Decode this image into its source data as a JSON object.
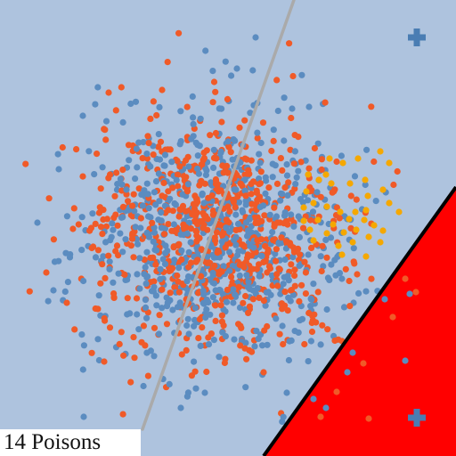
{
  "caption": "14 Poisons",
  "colors": {
    "background": "#aec3de",
    "region_fill": "#ff0000",
    "region_edge": "#000000",
    "boundary_line": "#aaaaaa",
    "class_a": "#f05a28",
    "class_b": "#5b8cc0",
    "poison": "#f5a800",
    "marker": "#4a7db3"
  },
  "icons": [
    "plus-marker-icon",
    "plus-marker-icon"
  ]
}
